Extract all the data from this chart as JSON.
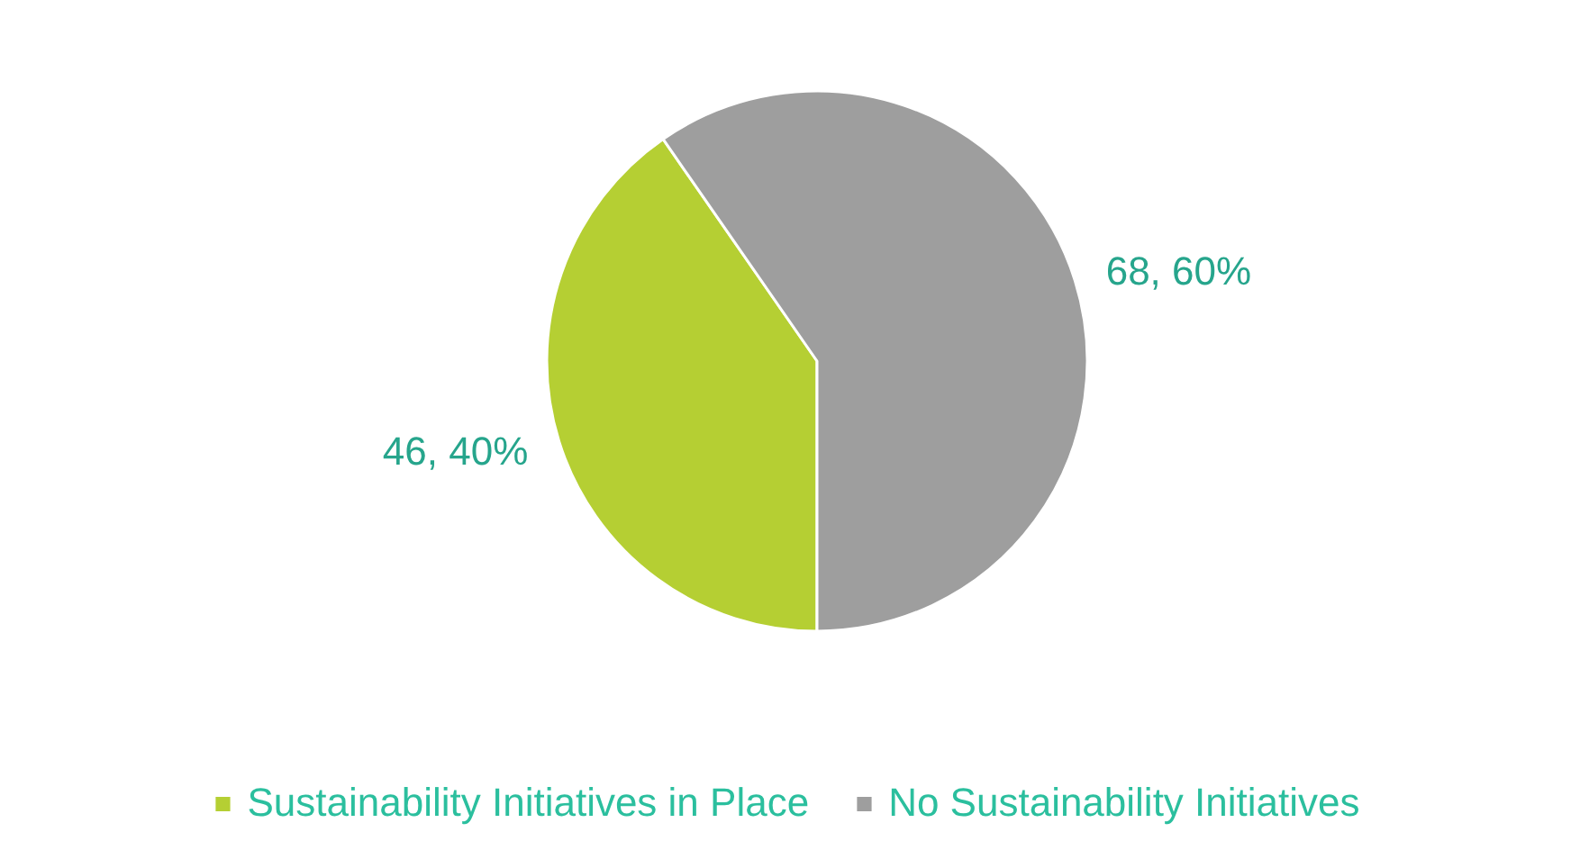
{
  "chart_data": {
    "type": "pie",
    "categories": [
      "Sustainability Initiatives in Place",
      "No Sustainability Initiatives"
    ],
    "values": [
      46,
      68
    ],
    "colors": [
      "#b5cf33",
      "#9e9e9e"
    ],
    "value_labels": [
      "46, 40%",
      "68, 60%"
    ],
    "legend": "bottom"
  }
}
